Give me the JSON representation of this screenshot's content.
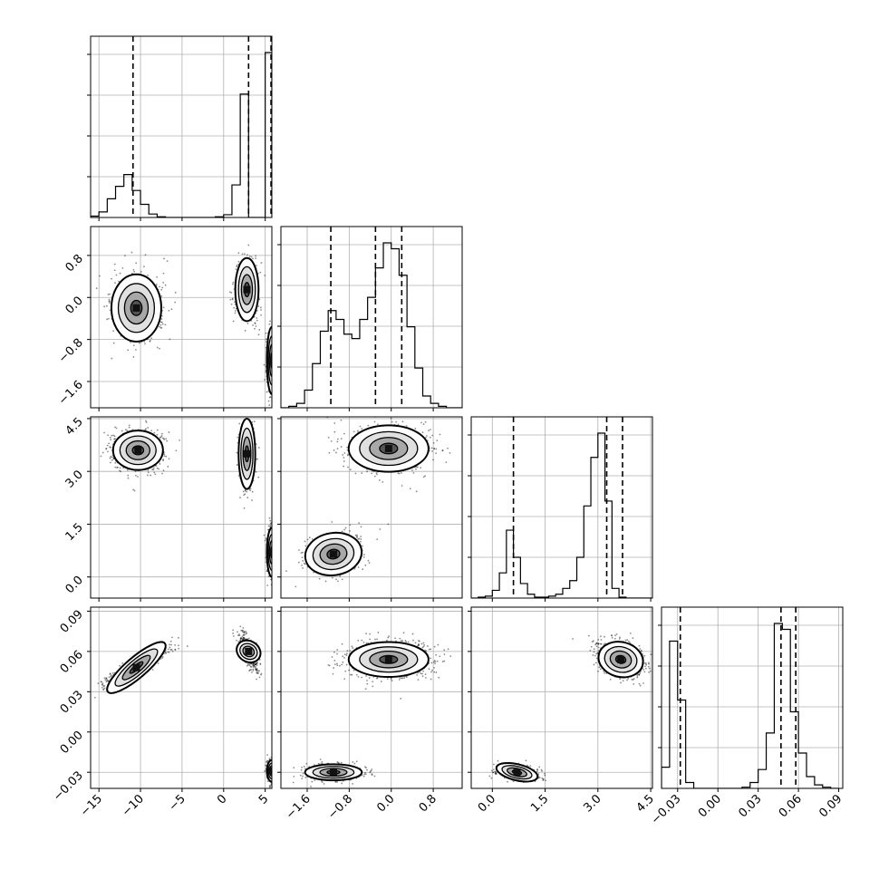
{
  "chart_data": {
    "type": "corner",
    "title": "",
    "grid": true,
    "parameters": [
      {
        "name": "",
        "range": [
          -16,
          5.8
        ],
        "ticks": [
          -15,
          -10,
          -5,
          0,
          5
        ],
        "tick_labels": [
          "−15",
          "−10",
          "−5",
          "0",
          "5"
        ],
        "quantile_lines": [
          -10.9,
          3.0,
          5.7
        ]
      },
      {
        "name": "",
        "range": [
          -2.1,
          1.35
        ],
        "ticks": [
          -1.6,
          -0.8,
          0.0,
          0.8
        ],
        "tick_labels": [
          "−1.6",
          "−0.8",
          "0.0",
          "0.8"
        ],
        "quantile_lines": [
          -1.15,
          -0.3,
          0.2
        ]
      },
      {
        "name": "",
        "range": [
          -0.6,
          4.55
        ],
        "ticks": [
          0.0,
          1.5,
          3.0,
          4.5
        ],
        "tick_labels": [
          "0.0",
          "1.5",
          "3.0",
          "4.5"
        ],
        "quantile_lines": [
          0.6,
          3.25,
          3.7
        ]
      },
      {
        "name": "",
        "range": [
          -0.042,
          0.093
        ],
        "ticks": [
          -0.03,
          0.0,
          0.03,
          0.06,
          0.09
        ],
        "tick_labels": [
          "−0.03",
          "0.00",
          "0.03",
          "0.06",
          "0.09"
        ],
        "quantile_lines": [
          -0.028,
          0.047,
          0.058
        ]
      }
    ],
    "histograms": [
      {
        "param": 0,
        "edges": [
          -16,
          -15,
          -14,
          -13,
          -12,
          -11,
          -10,
          -9,
          -8,
          -7,
          -6,
          -5,
          -4,
          -3,
          -2,
          -1,
          0,
          1,
          2,
          3,
          4,
          5,
          5.8
        ],
        "counts": [
          2,
          8,
          27,
          45,
          62,
          39,
          19,
          5,
          1,
          0,
          0,
          0,
          0,
          0,
          0,
          1,
          4,
          47,
          178,
          0,
          0,
          238
        ]
      },
      {
        "param": 1,
        "edges": [
          -2.1,
          -1.95,
          -1.8,
          -1.65,
          -1.5,
          -1.35,
          -1.2,
          -1.05,
          -0.9,
          -0.75,
          -0.6,
          -0.45,
          -0.3,
          -0.15,
          0.0,
          0.15,
          0.3,
          0.45,
          0.6,
          0.75,
          0.9,
          1.05,
          1.2,
          1.35
        ],
        "counts": [
          0,
          1,
          3,
          12,
          30,
          52,
          66,
          60,
          50,
          47,
          60,
          75,
          95,
          112,
          108,
          90,
          55,
          27,
          8,
          3,
          1,
          0,
          0
        ]
      },
      {
        "param": 2,
        "edges": [
          -0.6,
          -0.4,
          -0.2,
          0.0,
          0.2,
          0.4,
          0.6,
          0.8,
          1.0,
          1.2,
          1.4,
          1.6,
          1.8,
          2.0,
          2.2,
          2.4,
          2.6,
          2.8,
          3.0,
          3.2,
          3.4,
          3.6,
          3.8,
          4.0,
          4.2,
          4.4,
          4.55
        ],
        "counts": [
          0,
          1,
          2,
          8,
          26,
          70,
          42,
          15,
          4,
          1,
          1,
          2,
          4,
          10,
          18,
          42,
          95,
          145,
          170,
          100,
          10,
          1,
          0,
          0,
          0,
          0
        ]
      },
      {
        "param": 3,
        "edges": [
          -0.042,
          -0.036,
          -0.03,
          -0.024,
          -0.018,
          -0.012,
          -0.006,
          0.0,
          0.006,
          0.012,
          0.018,
          0.024,
          0.03,
          0.036,
          0.042,
          0.048,
          0.054,
          0.06,
          0.066,
          0.072,
          0.078,
          0.084,
          0.09
        ],
        "counts": [
          18,
          125,
          75,
          5,
          0,
          0,
          0,
          0,
          0,
          0,
          1,
          5,
          16,
          47,
          140,
          135,
          65,
          30,
          10,
          3,
          1,
          0
        ]
      }
    ],
    "densities": [
      {
        "x": 0,
        "y": 1,
        "clusters": [
          {
            "cx": -10.5,
            "cy": -0.2,
            "sx": 1.5,
            "sy": 0.32,
            "rho": 0.0,
            "n": 700
          },
          {
            "cx": 2.8,
            "cy": 0.15,
            "sx": 0.7,
            "sy": 0.3,
            "rho": 0.0,
            "n": 450
          },
          {
            "cx": 5.8,
            "cy": -1.2,
            "sx": 0.3,
            "sy": 0.32,
            "rho": 0.0,
            "n": 400
          }
        ]
      },
      {
        "x": 0,
        "y": 2,
        "clusters": [
          {
            "cx": -10.3,
            "cy": 3.6,
            "sx": 1.5,
            "sy": 0.28,
            "rho": 0.0,
            "n": 700
          },
          {
            "cx": 2.8,
            "cy": 3.5,
            "sx": 0.5,
            "sy": 0.5,
            "rho": 0.0,
            "n": 450
          },
          {
            "cx": 5.8,
            "cy": 0.7,
            "sx": 0.3,
            "sy": 0.35,
            "rho": 0.0,
            "n": 400
          }
        ]
      },
      {
        "x": 0,
        "y": 3,
        "clusters": [
          {
            "cx": -10.5,
            "cy": 0.048,
            "sx": 1.8,
            "sy": 0.007,
            "rho": 0.9,
            "n": 700
          },
          {
            "cx": 3.0,
            "cy": 0.06,
            "sx": 0.6,
            "sy": 0.007,
            "rho": -0.7,
            "n": 450
          },
          {
            "cx": 5.8,
            "cy": -0.029,
            "sx": 0.3,
            "sy": 0.004,
            "rho": 0.0,
            "n": 400
          }
        ]
      },
      {
        "x": 1,
        "y": 2,
        "clusters": [
          {
            "cx": -0.05,
            "cy": 3.65,
            "sx": 0.38,
            "sy": 0.33,
            "rho": 0.0,
            "n": 1000
          },
          {
            "cx": -1.1,
            "cy": 0.65,
            "sx": 0.27,
            "sy": 0.3,
            "rho": 0.2,
            "n": 550
          }
        ]
      },
      {
        "x": 1,
        "y": 3,
        "clusters": [
          {
            "cx": -0.05,
            "cy": 0.054,
            "sx": 0.38,
            "sy": 0.0065,
            "rho": 0.0,
            "n": 1000
          },
          {
            "cx": -1.1,
            "cy": -0.03,
            "sx": 0.27,
            "sy": 0.003,
            "rho": 0.0,
            "n": 550
          }
        ]
      },
      {
        "x": 2,
        "y": 3,
        "clusters": [
          {
            "cx": 3.65,
            "cy": 0.054,
            "sx": 0.32,
            "sy": 0.0065,
            "rho": -0.3,
            "n": 1000
          },
          {
            "cx": 0.7,
            "cy": -0.03,
            "sx": 0.3,
            "sy": 0.003,
            "rho": -0.3,
            "n": 550
          }
        ]
      }
    ]
  }
}
